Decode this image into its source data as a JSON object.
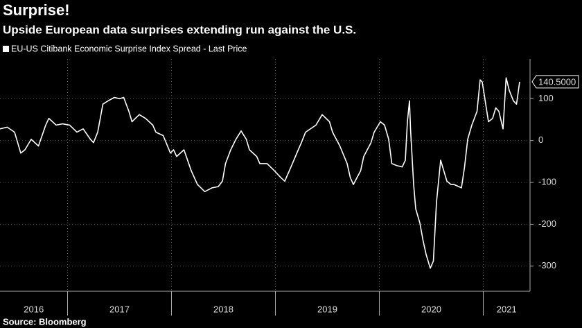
{
  "chart_data": {
    "type": "line",
    "title": "Surprise!",
    "subtitle": "Upside European data surprises extending run against the U.S.",
    "last_price_label": "140.5000",
    "source": "Source: Bloomberg",
    "grid": true,
    "xlim": [
      2016.35,
      2021.45
    ],
    "xticks": [
      2016,
      2017,
      2018,
      2019,
      2020,
      2021
    ],
    "ylim": [
      -360,
      195
    ],
    "yticks": [
      100,
      0,
      -100,
      -200,
      -300
    ],
    "series": [
      {
        "name": "EU-US Citibank Economic Surprise Index Spread - Last Price",
        "color": "#ffffff",
        "x": [
          2016.35,
          2016.42,
          2016.49,
          2016.55,
          2016.59,
          2016.65,
          2016.72,
          2016.79,
          2016.82,
          2016.89,
          2016.95,
          2017.02,
          2017.09,
          2017.15,
          2017.22,
          2017.25,
          2017.29,
          2017.34,
          2017.39,
          2017.45,
          2017.5,
          2017.54,
          2017.59,
          2017.62,
          2017.69,
          2017.75,
          2017.82,
          2017.85,
          2017.92,
          2017.99,
          2018.02,
          2018.05,
          2018.12,
          2018.19,
          2018.25,
          2018.32,
          2018.39,
          2018.45,
          2018.49,
          2018.52,
          2018.57,
          2018.62,
          2018.67,
          2018.72,
          2018.75,
          2018.82,
          2018.85,
          2018.92,
          2018.99,
          2019.05,
          2019.09,
          2019.15,
          2019.22,
          2019.25,
          2019.29,
          2019.39,
          2019.45,
          2019.52,
          2019.55,
          2019.62,
          2019.69,
          2019.72,
          2019.75,
          2019.82,
          2019.85,
          2019.92,
          2019.95,
          2020.01,
          2020.05,
          2020.09,
          2020.12,
          2020.17,
          2020.22,
          2020.25,
          2020.27,
          2020.29,
          2020.3,
          2020.33,
          2020.35,
          2020.39,
          2020.42,
          2020.45,
          2020.49,
          2020.52,
          2020.55,
          2020.59,
          2020.62,
          2020.65,
          2020.69,
          2020.72,
          2020.79,
          2020.82,
          2020.85,
          2020.89,
          2020.94,
          2020.97,
          2020.99,
          2021.05,
          2021.09,
          2021.12,
          2021.15,
          2021.19,
          2021.22,
          2021.25,
          2021.29,
          2021.32,
          2021.35
        ],
        "values": [
          28,
          32,
          20,
          -30,
          -22,
          3,
          -13,
          37,
          53,
          37,
          40,
          37,
          20,
          28,
          3,
          -5,
          20,
          87,
          95,
          103,
          100,
          103,
          70,
          45,
          62,
          53,
          37,
          20,
          12,
          -30,
          -22,
          -38,
          -22,
          -72,
          -105,
          -122,
          -113,
          -110,
          -97,
          -55,
          -22,
          3,
          23,
          3,
          -22,
          -38,
          -55,
          -55,
          -72,
          -88,
          -97,
          -63,
          -22,
          -5,
          20,
          37,
          62,
          45,
          20,
          -13,
          -55,
          -88,
          -105,
          -72,
          -38,
          -5,
          20,
          45,
          37,
          3,
          -55,
          -60,
          -63,
          -47,
          45,
          95,
          28,
          -105,
          -163,
          -197,
          -238,
          -272,
          -305,
          -288,
          -147,
          -47,
          -72,
          -97,
          -105,
          -105,
          -113,
          -63,
          3,
          37,
          70,
          145,
          140,
          45,
          53,
          78,
          70,
          28,
          150,
          120,
          95,
          87,
          140.5
        ]
      }
    ]
  }
}
